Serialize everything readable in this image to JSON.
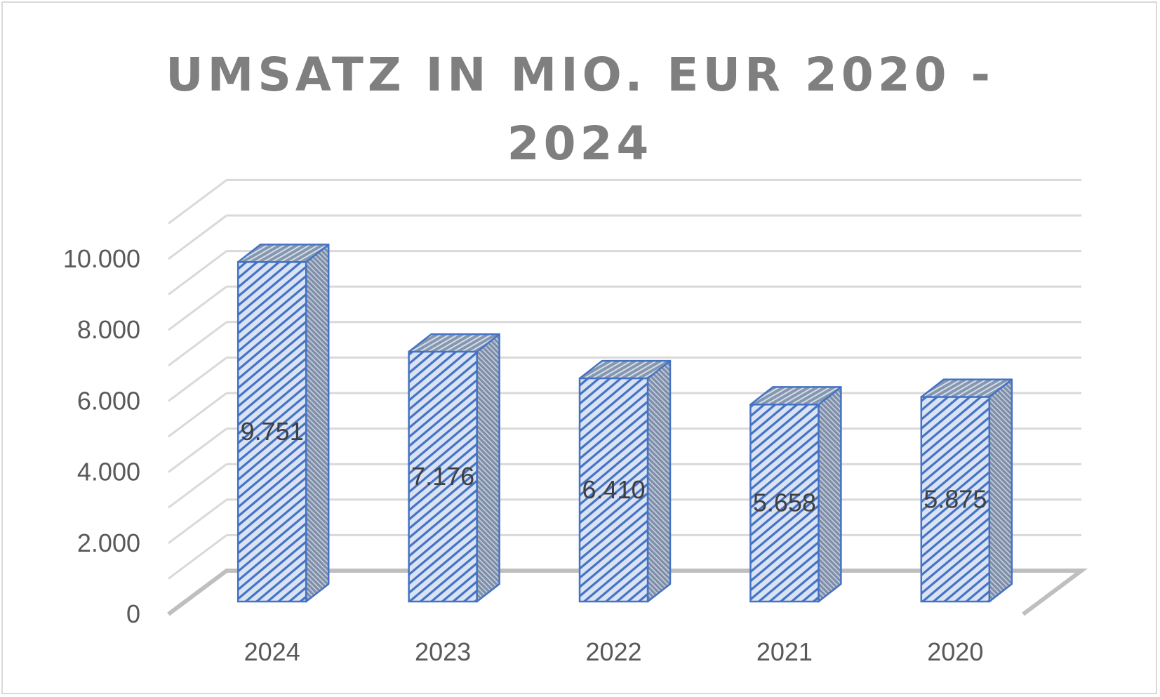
{
  "chart_data": {
    "type": "bar",
    "style": "3d-clustered-column",
    "title_lines": [
      "UMSATZ IN MIO. EUR 2020 -",
      "2024"
    ],
    "categories": [
      "2024",
      "2023",
      "2022",
      "2021",
      "2020"
    ],
    "series": [
      {
        "values": [
          9751,
          7176,
          6410,
          5658,
          5875
        ]
      }
    ],
    "data_labels": [
      "9.751",
      "7.176",
      "6.410",
      "5.658",
      "5.875"
    ],
    "y_ticks": [
      {
        "value": 0,
        "label": "0"
      },
      {
        "value": 2000,
        "label": "2.000"
      },
      {
        "value": 4000,
        "label": "4.000"
      },
      {
        "value": 6000,
        "label": "6.000"
      },
      {
        "value": 8000,
        "label": "8.000"
      },
      {
        "value": 10000,
        "label": "10.000"
      }
    ],
    "ylim": [
      0,
      10000
    ],
    "grid": true,
    "legend": "none",
    "colors": {
      "bar_border": "#4472c4",
      "bar_fill": "#dae3f3",
      "bar_hatch": "#4472c4",
      "bar_side": "#8497b0",
      "gridline": "#d9d9d9",
      "floor": "#bfbfbf",
      "text": "#595959"
    }
  }
}
